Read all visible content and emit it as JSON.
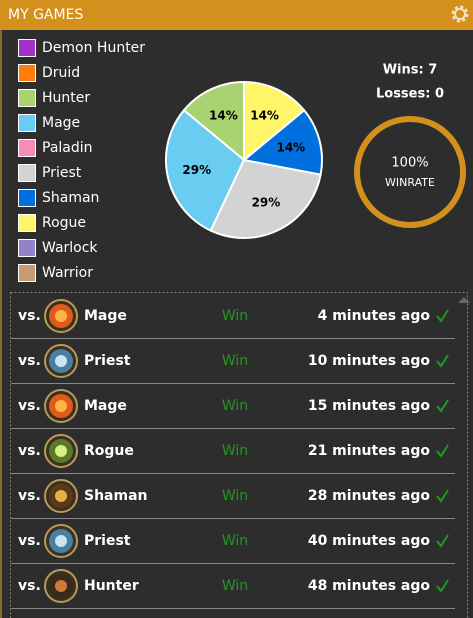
{
  "header": {
    "title": "MY GAMES"
  },
  "chart_data": {
    "type": "pie",
    "categories": [
      "Demon Hunter",
      "Druid",
      "Hunter",
      "Mage",
      "Paladin",
      "Priest",
      "Shaman",
      "Rogue",
      "Warlock",
      "Warrior"
    ],
    "values": [
      0,
      0,
      14,
      29,
      0,
      29,
      14,
      14,
      0,
      0
    ],
    "value_labels": [
      null,
      null,
      "14%",
      "29%",
      null,
      "29%",
      "14%",
      "14%",
      null,
      null
    ],
    "colors": [
      "#a330c9",
      "#ff7d0a",
      "#a9d271",
      "#69ccf0",
      "#f58cba",
      "#d3d3d3",
      "#0070de",
      "#fff569",
      "#9482c9",
      "#c79c6e"
    ]
  },
  "stats": {
    "wins": "Wins: 7",
    "losses": "Losses: 0",
    "winrate": "100%",
    "winrate_label": "WINRATE"
  },
  "games": [
    {
      "prefix": "vs.",
      "opponent": "Mage",
      "result": "Win",
      "time": "4 minutes ago"
    },
    {
      "prefix": "vs.",
      "opponent": "Priest",
      "result": "Win",
      "time": "10 minutes ago"
    },
    {
      "prefix": "vs.",
      "opponent": "Mage",
      "result": "Win",
      "time": "15 minutes ago"
    },
    {
      "prefix": "vs.",
      "opponent": "Rogue",
      "result": "Win",
      "time": "21 minutes ago"
    },
    {
      "prefix": "vs.",
      "opponent": "Shaman",
      "result": "Win",
      "time": "28 minutes ago"
    },
    {
      "prefix": "vs.",
      "opponent": "Priest",
      "result": "Win",
      "time": "40 minutes ago"
    },
    {
      "prefix": "vs.",
      "opponent": "Hunter",
      "result": "Win",
      "time": "48 minutes ago"
    }
  ]
}
